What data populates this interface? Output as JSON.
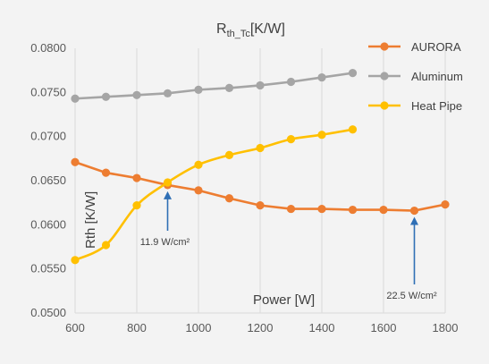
{
  "chart_data": {
    "type": "line",
    "title_main": "R",
    "title_sub": "th_Tc",
    "title_unit": "[K/W]",
    "xlabel": "Power [W]",
    "ylabel": "Rth [K/W]",
    "xlim": [
      600,
      1800
    ],
    "ylim": [
      0.05,
      0.08
    ],
    "xticks": [
      "600",
      "800",
      "1000",
      "1200",
      "1400",
      "1600",
      "1800"
    ],
    "xtick_values": [
      600,
      800,
      1000,
      1200,
      1400,
      1600,
      1800
    ],
    "yticks": [
      "0.0500",
      "0.0550",
      "0.0600",
      "0.0650",
      "0.0700",
      "0.0750",
      "0.0800"
    ],
    "ytick_values": [
      0.05,
      0.055,
      0.06,
      0.065,
      0.07,
      0.075,
      0.08
    ],
    "grid": "vertical",
    "legend_position": "top-right",
    "series": [
      {
        "name": "AURORA",
        "color": "#ED7D31",
        "smooth": false,
        "x": [
          600,
          700,
          800,
          900,
          1000,
          1100,
          1200,
          1300,
          1400,
          1500,
          1600,
          1700,
          1800
        ],
        "y": [
          0.0671,
          0.0659,
          0.0653,
          0.0645,
          0.0639,
          0.063,
          0.0622,
          0.0618,
          0.0618,
          0.0617,
          0.0617,
          0.0616,
          0.0623
        ]
      },
      {
        "name": "Aluminum",
        "color": "#A5A5A5",
        "smooth": false,
        "x": [
          600,
          700,
          800,
          900,
          1000,
          1100,
          1200,
          1300,
          1400,
          1500
        ],
        "y": [
          0.0743,
          0.0745,
          0.0747,
          0.0749,
          0.0753,
          0.0755,
          0.0758,
          0.0762,
          0.0767,
          0.0772
        ]
      },
      {
        "name": "Heat Pipe",
        "color": "#FFC000",
        "smooth": true,
        "x": [
          600,
          700,
          800,
          900,
          1000,
          1100,
          1200,
          1300,
          1400,
          1500
        ],
        "y": [
          0.056,
          0.0577,
          0.0622,
          0.0648,
          0.0668,
          0.0679,
          0.0687,
          0.0697,
          0.0702,
          0.0708
        ]
      }
    ],
    "annotations": [
      {
        "text": "11.9 W/cm²",
        "x": 900,
        "y": 0.0645,
        "arrow_color": "#2F6FB5"
      },
      {
        "text": "22.5 W/cm²",
        "x": 1700,
        "y": 0.0616,
        "arrow_color": "#2F6FB5"
      }
    ]
  }
}
